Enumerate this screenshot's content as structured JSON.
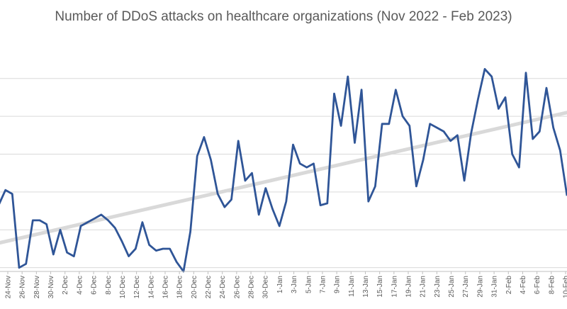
{
  "chart_data": {
    "type": "line",
    "title": "Number of DDoS attacks on healthcare organizations (Nov 2022 - Feb 2023)",
    "xlabel": "",
    "ylabel": "",
    "y_axis_labels_visible": false,
    "grid": true,
    "legend": "none",
    "x_tick_labels": [
      "24-Nov",
      "26-Nov",
      "28-Nov",
      "30-Nov",
      "2-Dec",
      "4-Dec",
      "6-Dec",
      "8-Dec",
      "10-Dec",
      "12-Dec",
      "14-Dec",
      "16-Dec",
      "18-Dec",
      "20-Dec",
      "22-Dec",
      "24-Dec",
      "26-Dec",
      "28-Dec",
      "30-Dec",
      "1-Jan",
      "3-Jan",
      "5-Jan",
      "7-Jan",
      "9-Jan",
      "11-Jan",
      "13-Jan",
      "15-Jan",
      "17-Jan",
      "19-Jan",
      "21-Jan",
      "23-Jan",
      "25-Jan",
      "27-Jan",
      "29-Jan",
      "31-Jan",
      "2-Feb",
      "4-Feb",
      "6-Feb",
      "8-Feb",
      "10-Feb"
    ],
    "series": [
      {
        "kind": "data",
        "color": "#2f5597",
        "values": [
          1.65,
          2.05,
          1.95,
          0.0,
          0.1,
          1.25,
          1.25,
          1.15,
          0.35,
          1.0,
          0.4,
          0.3,
          1.1,
          1.2,
          1.3,
          1.4,
          1.25,
          1.05,
          0.7,
          0.3,
          0.5,
          1.2,
          0.6,
          0.45,
          0.5,
          0.5,
          0.15,
          -0.1,
          0.95,
          2.95,
          3.45,
          2.85,
          1.95,
          1.6,
          1.8,
          3.35,
          2.3,
          2.5,
          1.4,
          2.1,
          1.55,
          1.1,
          1.75,
          3.25,
          2.75,
          2.65,
          2.75,
          1.65,
          1.7,
          4.6,
          3.75,
          5.05,
          3.3,
          4.7,
          1.75,
          2.15,
          3.8,
          3.8,
          4.7,
          4.0,
          3.75,
          2.15,
          2.85,
          3.8,
          3.7,
          3.6,
          3.35,
          3.5,
          2.3,
          3.55,
          4.45,
          5.25,
          5.05,
          4.2,
          4.5,
          3.0,
          2.65,
          5.15,
          3.4,
          3.6,
          4.75,
          3.7,
          3.1,
          1.9
        ]
      },
      {
        "kind": "trendline",
        "color": "#d9d9d9",
        "start": 0.65,
        "end": 4.1
      }
    ],
    "ylim": [
      -0.1,
      5.95
    ],
    "gridlines": [
      0,
      1,
      2,
      3,
      4,
      5
    ]
  }
}
